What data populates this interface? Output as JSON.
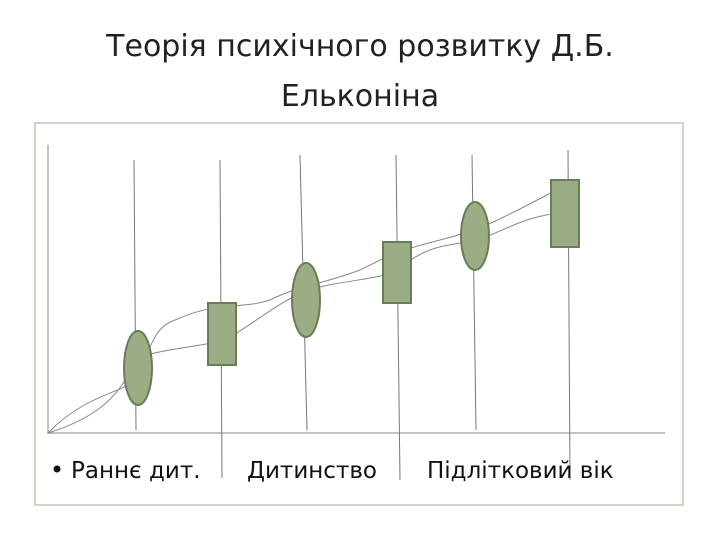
{
  "header": {
    "title": "Теорія психічного розвитку Д.Б. Ельконіна"
  },
  "labels": [
    "Раннє дит.",
    "Дитинство",
    "Підлітковий вік"
  ]
}
